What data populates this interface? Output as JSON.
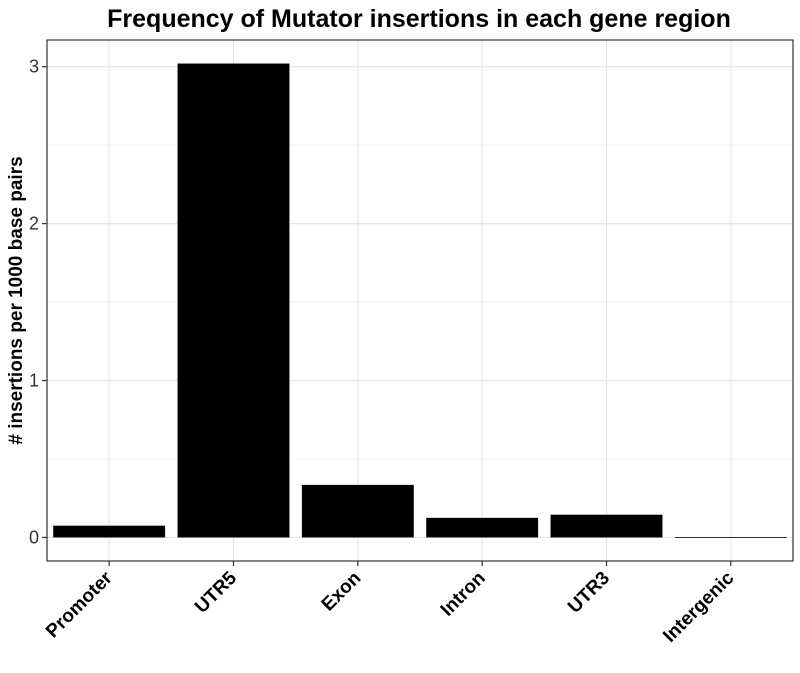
{
  "chart_data": {
    "type": "bar",
    "title": "Frequency of Mutator insertions in each gene region",
    "xlabel": "",
    "ylabel": "# insertions per 1000 base pairs",
    "categories": [
      "Promoter",
      "UTR5",
      "Exon",
      "Intron",
      "UTR3",
      "Intergenic"
    ],
    "values": [
      0.075,
      3.02,
      0.335,
      0.125,
      0.145,
      0.003
    ],
    "ylim": [
      -0.15,
      3.17
    ],
    "yticks": [
      0,
      1,
      2,
      3
    ],
    "grid": true,
    "legend": "none",
    "bar_color": "#000000"
  }
}
